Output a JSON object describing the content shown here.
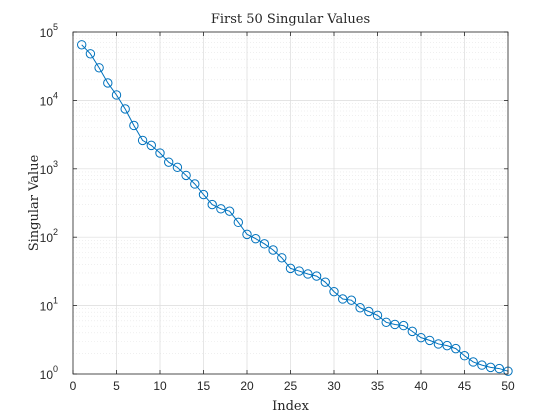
{
  "chart_data": {
    "type": "line",
    "title": "First 50 Singular Values",
    "xlabel": "Index",
    "ylabel": "Singular Value",
    "xlim": [
      0,
      50
    ],
    "ylim": [
      1,
      100000
    ],
    "yscale": "log",
    "grid": true,
    "minor_grid": true,
    "x_ticks": [
      0,
      5,
      10,
      15,
      20,
      25,
      30,
      35,
      40,
      45,
      50
    ],
    "x_tick_labels": [
      "0",
      "5",
      "10",
      "15",
      "20",
      "25",
      "30",
      "35",
      "40",
      "45",
      "50"
    ],
    "y_ticks": [
      1,
      10,
      100,
      1000,
      10000,
      100000
    ],
    "y_tick_labels": [
      {
        "base": "10",
        "exp": "0"
      },
      {
        "base": "10",
        "exp": "1"
      },
      {
        "base": "10",
        "exp": "2"
      },
      {
        "base": "10",
        "exp": "3"
      },
      {
        "base": "10",
        "exp": "4"
      },
      {
        "base": "10",
        "exp": "5"
      }
    ],
    "series": [
      {
        "marker": "circle",
        "color": "#0072BD",
        "x": [
          1,
          2,
          3,
          4,
          5,
          6,
          7,
          8,
          9,
          10,
          11,
          12,
          13,
          14,
          15,
          16,
          17,
          18,
          19,
          20,
          21,
          22,
          23,
          24,
          25,
          26,
          27,
          28,
          29,
          30,
          31,
          32,
          33,
          34,
          35,
          36,
          37,
          38,
          39,
          40,
          41,
          42,
          43,
          44,
          45,
          46,
          47,
          48,
          49,
          50
        ],
        "y": [
          65000,
          48000,
          30000,
          18000,
          12000,
          7500,
          4300,
          2600,
          2200,
          1700,
          1250,
          1050,
          800,
          600,
          420,
          300,
          260,
          240,
          165,
          110,
          95,
          80,
          65,
          50,
          35,
          32,
          29,
          27,
          22,
          16,
          12.5,
          12,
          9.3,
          8.2,
          7.2,
          5.7,
          5.3,
          5.1,
          4.2,
          3.4,
          3.1,
          2.75,
          2.6,
          2.35,
          1.85,
          1.5,
          1.35,
          1.25,
          1.2,
          1.1
        ]
      }
    ]
  },
  "colors": {
    "axes": "#262626",
    "grid": "#dcdcdc",
    "minor_grid": "#e6e6e6",
    "series": "#0072BD"
  }
}
